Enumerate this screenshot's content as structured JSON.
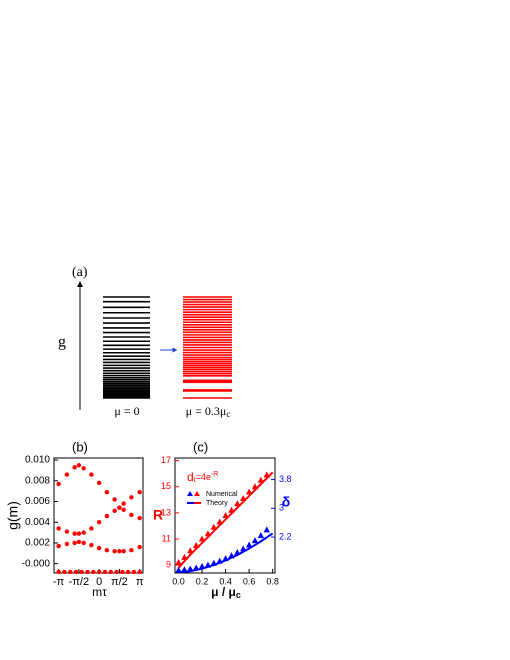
{
  "panel_a": {
    "label": "(a)",
    "axis_label": "g",
    "columns": [
      {
        "label": "μ = 0",
        "color": "#000000",
        "levels": [
          0,
          1,
          2,
          3,
          4.2,
          5.4,
          6.6,
          8,
          9.5,
          11,
          12.6,
          14.3,
          16,
          18,
          20,
          22.2,
          24.5,
          27,
          29.6,
          32.3,
          35.2,
          38.2,
          41.4,
          44.8,
          48.4,
          52.2,
          56.2,
          60.4,
          64.8,
          69.4,
          74.2,
          79.2,
          84.4,
          89.8,
          95.4,
          100
        ]
      },
      {
        "label": "μ = 0.3μ",
        "label_sub": "c",
        "color": "#ff0000",
        "levels": [
          0,
          7,
          8,
          15.5,
          16.5,
          17.5,
          22,
          24,
          26,
          28,
          30,
          32,
          34,
          36,
          38,
          40,
          42.5,
          45,
          47.5,
          50,
          52.5,
          55,
          57.5,
          60,
          62.5,
          65,
          67.5,
          70,
          72.5,
          75,
          77.5,
          80,
          82.5,
          85,
          87.5,
          90,
          92.5,
          95,
          97.5,
          100
        ]
      }
    ]
  },
  "chart_data": [
    {
      "type": "scatter",
      "label": "(b)",
      "xlabel": "mτ",
      "ylabel": "g(m)",
      "color": "#ff0000",
      "xlim": [
        -3.5,
        3.4
      ],
      "ylim": [
        -0.0009,
        0.0102
      ],
      "xticks": [
        {
          "value": -3.1416,
          "label": "-π"
        },
        {
          "value": -1.5708,
          "label": "-π/2"
        },
        0,
        {
          "value": 1.5708,
          "label": "π/2"
        },
        {
          "value": 3.1416,
          "label": "π"
        }
      ],
      "yticks": [
        {
          "value": 0.01,
          "label": "0.010"
        },
        0.008,
        0.006,
        0.004,
        0.002,
        {
          "value": 0,
          "label": "-0.000"
        }
      ],
      "series": [
        {
          "x": [
            -3.14,
            -2.69,
            -2.24,
            -1.8,
            -1.35,
            -0.9,
            -0.45,
            0,
            0.45,
            0.9,
            1.35,
            1.8,
            2.24,
            2.69,
            3.14
          ],
          "values": [
            -0.0008,
            -0.0008,
            -0.0008,
            -0.0008,
            -0.0008,
            -0.0008,
            -0.0008,
            -0.0008,
            -0.0008,
            -0.0008,
            -0.0008,
            -0.0008,
            -0.0008,
            -0.0008,
            -0.0008
          ]
        },
        {
          "x": [
            -3.14,
            -2.5,
            -1.9,
            -1.57,
            -1.2,
            -0.6,
            0,
            0.6,
            1.2,
            1.57,
            1.9,
            2.5,
            3.14
          ],
          "values": [
            0.0017,
            0.0019,
            0.002,
            0.0021,
            0.002,
            0.0018,
            0.0015,
            0.0013,
            0.0012,
            0.0012,
            0.0012,
            0.0013,
            0.0016
          ]
        },
        {
          "x": [
            -3.14,
            -2.5,
            -1.9,
            -1.57,
            -1.2,
            -0.6,
            0,
            0.6,
            1.2,
            1.57,
            1.9,
            2.5,
            3.14
          ],
          "values": [
            0.0034,
            0.0031,
            0.0029,
            0.0029,
            0.003,
            0.0034,
            0.004,
            0.0046,
            0.0051,
            0.0054,
            0.0058,
            0.0064,
            0.0069
          ]
        },
        {
          "x": [
            -3.14,
            -2.5,
            -1.9,
            -1.57,
            -1.2,
            -0.6,
            0,
            0.6,
            1.2,
            1.57,
            1.9,
            2.5,
            3.14
          ],
          "values": [
            0.0077,
            0.0086,
            0.0093,
            0.0095,
            0.0092,
            0.0086,
            0.0078,
            0.0069,
            0.0062,
            0.0054,
            0.0052,
            0.0047,
            0.0044
          ]
        }
      ]
    },
    {
      "type": "line",
      "label": "(c)",
      "xlabel": "μ / μ",
      "xlabel_sub": "c",
      "ylabel": "R",
      "y2label": "δ",
      "annotation": "d",
      "annotation_sub": "t",
      "annotation_mid": "=4e",
      "annotation_sup": "-R",
      "xlim": [
        -0.03,
        0.82
      ],
      "ylim": [
        8.4,
        17.2
      ],
      "y2lim": [
        1.2,
        4.4
      ],
      "xticks": [
        {
          "value": 0,
          "label": "0.0"
        },
        0.2,
        0.4,
        0.6,
        0.8
      ],
      "yticks": [
        9,
        11,
        13,
        15,
        17
      ],
      "y2ticks": [
        2.2,
        3.0,
        3.8
      ],
      "ycolor": "#ff0000",
      "y2color": "#0000ff",
      "series": [
        {
          "name": "Numerical",
          "color": "#ff0000",
          "marker": "triangle",
          "x": [
            0,
            0.05,
            0.1,
            0.15,
            0.2,
            0.25,
            0.3,
            0.35,
            0.4,
            0.45,
            0.5,
            0.55,
            0.6,
            0.65,
            0.7,
            0.75
          ],
          "values": [
            9.2,
            9.6,
            10.1,
            10.5,
            11,
            11.4,
            11.9,
            12.3,
            12.8,
            13.2,
            13.7,
            14.1,
            14.6,
            15,
            15.5,
            15.9
          ]
        },
        {
          "name": "Theory",
          "color": "#ff0000",
          "marker": "line",
          "x": [
            0,
            0.1,
            0.2,
            0.3,
            0.4,
            0.5,
            0.6,
            0.7,
            0.8
          ],
          "values": [
            8.8,
            9.8,
            10.7,
            11.6,
            12.5,
            13.4,
            14.3,
            15.2,
            16.1
          ]
        },
        {
          "color": "#0000ff",
          "marker": "triangle",
          "axis": "y2",
          "x": [
            0,
            0.05,
            0.1,
            0.15,
            0.2,
            0.25,
            0.3,
            0.35,
            0.4,
            0.45,
            0.5,
            0.55,
            0.6,
            0.65,
            0.7,
            0.75
          ],
          "values": [
            1.28,
            1.29,
            1.31,
            1.34,
            1.38,
            1.42,
            1.47,
            1.53,
            1.6,
            1.68,
            1.77,
            1.87,
            1.98,
            2.1,
            2.24,
            2.4
          ]
        },
        {
          "color": "#0000ff",
          "marker": "line",
          "axis": "y2",
          "x": [
            0,
            0.1,
            0.2,
            0.3,
            0.4,
            0.5,
            0.6,
            0.7,
            0.8
          ],
          "values": [
            1.22,
            1.25,
            1.32,
            1.42,
            1.55,
            1.7,
            1.88,
            2.08,
            2.3
          ]
        }
      ]
    }
  ]
}
